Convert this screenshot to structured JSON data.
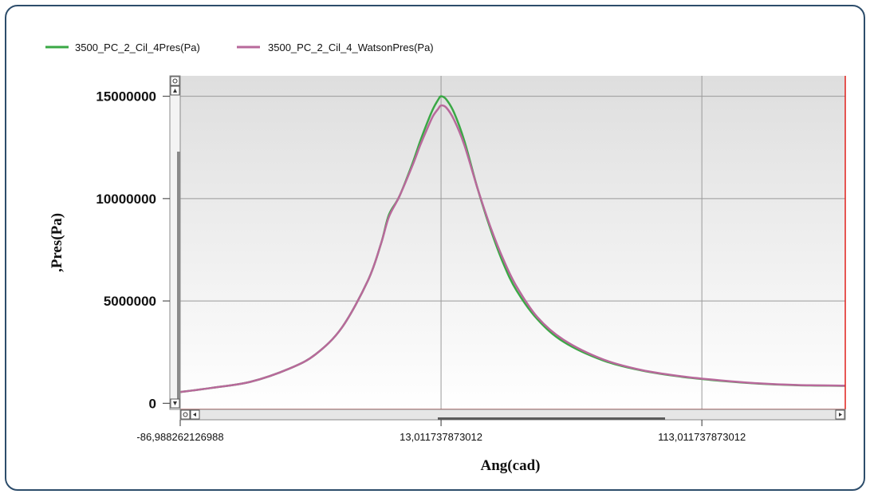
{
  "chart_data": {
    "type": "line",
    "xlabel": "Ang(cad)",
    "ylabel": ",Pres(Pa)",
    "xlim": [
      -86.988262126988,
      168
    ],
    "ylim": [
      -300000,
      16000000
    ],
    "x_ticks": [
      -86.988262126988,
      13.011737873012,
      113.011737873012
    ],
    "x_tick_labels": [
      "-86,988262126988",
      "13,011737873012",
      "113,011737873012"
    ],
    "y_ticks": [
      0,
      5000000,
      10000000,
      15000000
    ],
    "y_tick_labels": [
      "0",
      "5000000",
      "10000000",
      "15000000"
    ],
    "grid": true,
    "legend_position": "top-left",
    "series": [
      {
        "name": "3500_PC_2_Cil_4Pres(Pa)",
        "color": "#3aa845",
        "x": [
          -86.99,
          -75,
          -60,
          -45,
          -35,
          -25,
          -15,
          -10,
          -7,
          -3,
          2,
          5,
          8,
          10,
          12,
          13,
          15,
          18,
          22,
          27,
          32,
          37,
          42,
          50,
          60,
          75,
          90,
          105,
          120,
          135,
          150,
          168
        ],
        "y": [
          550000,
          750000,
          1050000,
          1700000,
          2400000,
          3700000,
          6000000,
          7800000,
          9200000,
          10100000,
          11700000,
          12800000,
          13800000,
          14400000,
          14850000,
          15000000,
          14850000,
          14200000,
          12800000,
          10500000,
          8500000,
          6800000,
          5500000,
          4100000,
          3000000,
          2100000,
          1600000,
          1300000,
          1100000,
          960000,
          880000,
          850000
        ]
      },
      {
        "name": "3500_PC_2_Cil_4_WatsonPres(Pa)",
        "color": "#b8699b",
        "x": [
          -86.99,
          -75,
          -60,
          -45,
          -35,
          -25,
          -15,
          -10,
          -7,
          -3,
          2,
          5,
          8,
          10,
          12,
          13,
          15,
          18,
          22,
          27,
          32,
          37,
          42,
          50,
          60,
          75,
          90,
          105,
          120,
          135,
          150,
          168
        ],
        "y": [
          550000,
          750000,
          1050000,
          1700000,
          2400000,
          3700000,
          6000000,
          7800000,
          9100000,
          10100000,
          11600000,
          12600000,
          13500000,
          14050000,
          14400000,
          14550000,
          14450000,
          13850000,
          12600000,
          10500000,
          8600000,
          7000000,
          5700000,
          4200000,
          3100000,
          2150000,
          1620000,
          1320000,
          1120000,
          970000,
          890000,
          860000
        ]
      }
    ]
  },
  "ui": {
    "frame_color": "#2d4d6b",
    "plot_gradient_top": "#dedede",
    "plot_gradient_bottom": "#ffffff",
    "grid_color": "#9a9a9a",
    "axis_color": "#e0201c"
  }
}
